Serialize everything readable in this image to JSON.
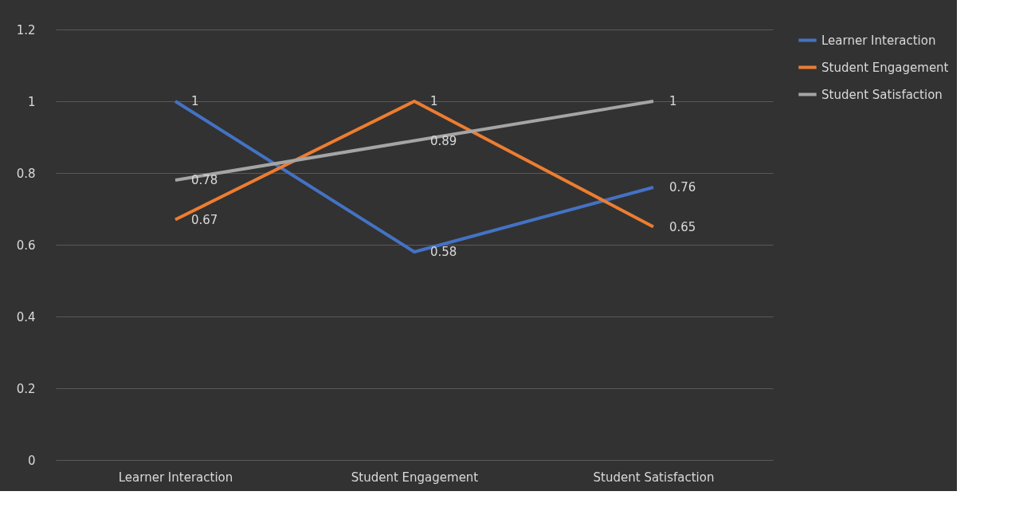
{
  "chart_data": {
    "type": "line",
    "categories": [
      "Learner Interaction",
      "Student Engagement",
      "Student Satisfaction"
    ],
    "series": [
      {
        "name": "Learner Interaction",
        "color": "#4472c4",
        "values": [
          1,
          0.58,
          0.76
        ]
      },
      {
        "name": "Student Engagement",
        "color": "#ed7d31",
        "values": [
          0.67,
          1,
          0.65
        ]
      },
      {
        "name": "Student Satisfaction",
        "color": "#a5a5a5",
        "values": [
          0.78,
          0.89,
          1
        ]
      }
    ],
    "ylim": [
      0,
      1.2
    ],
    "yticks": [
      0,
      0.2,
      0.4,
      0.6,
      0.8,
      1,
      1.2
    ],
    "grid": "y",
    "legend": "right",
    "data_labels": true,
    "marker": "none",
    "line_style": "solid"
  }
}
